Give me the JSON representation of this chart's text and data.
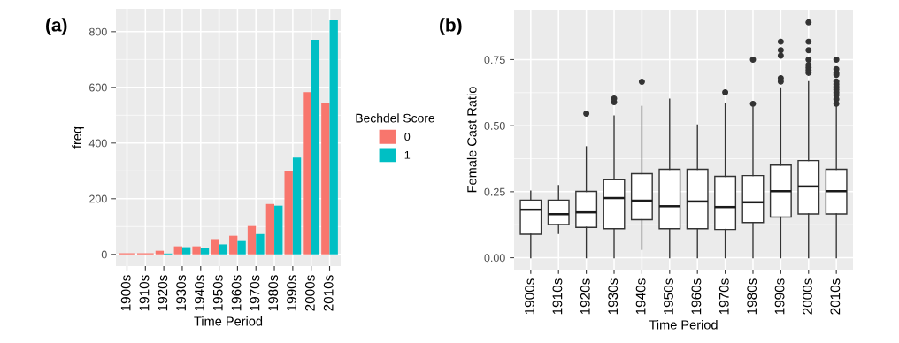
{
  "chart_data": [
    {
      "type": "bar",
      "title": "(a)",
      "xlabel": "Time Period",
      "ylabel": "freq",
      "legend_title": "Bechdel Score",
      "legend": "right",
      "categories": [
        "1900s",
        "1910s",
        "1920s",
        "1930s",
        "1940s",
        "1950s",
        "1960s",
        "1970s",
        "1980s",
        "1990s",
        "2000s",
        "2010s"
      ],
      "series": [
        {
          "name": "0",
          "color": "#f8766d",
          "values": [
            4,
            4,
            13,
            29,
            29,
            55,
            67,
            102,
            181,
            300,
            583,
            545
          ]
        },
        {
          "name": "1",
          "color": "#00bfc4",
          "values": [
            null,
            null,
            3,
            26,
            22,
            36,
            48,
            73,
            175,
            348,
            771,
            841
          ]
        }
      ],
      "ylim": [
        -42,
        882
      ],
      "yticks": [
        0,
        200,
        400,
        600,
        800
      ],
      "grid": true
    },
    {
      "type": "box",
      "title": "(b)",
      "xlabel": "Time Period",
      "ylabel": "Female Cast Ratio",
      "categories": [
        "1900s",
        "1910s",
        "1920s",
        "1930s",
        "1940s",
        "1950s",
        "1960s",
        "1970s",
        "1980s",
        "1990s",
        "2000s",
        "2010s"
      ],
      "boxes": [
        {
          "low": 0,
          "q1": 0.089,
          "median": 0.182,
          "q3": 0.218,
          "high": 0.252
        },
        {
          "low": 0.092,
          "q1": 0.126,
          "median": 0.165,
          "q3": 0.218,
          "high": 0.273
        },
        {
          "low": 0,
          "q1": 0.115,
          "median": 0.172,
          "q3": 0.251,
          "high": 0.42,
          "outliers": [
            0.546
          ]
        },
        {
          "low": 0,
          "q1": 0.11,
          "median": 0.226,
          "q3": 0.295,
          "high": 0.537,
          "outliers": [
            0.589,
            0.603
          ]
        },
        {
          "low": 0.032,
          "q1": 0.144,
          "median": 0.216,
          "q3": 0.318,
          "high": 0.573,
          "outliers": [
            0.666
          ]
        },
        {
          "low": 0,
          "q1": 0.11,
          "median": 0.195,
          "q3": 0.335,
          "high": 0.6
        },
        {
          "low": 0,
          "q1": 0.11,
          "median": 0.213,
          "q3": 0.335,
          "high": 0.502
        },
        {
          "low": 0,
          "q1": 0.107,
          "median": 0.192,
          "q3": 0.308,
          "high": 0.583,
          "outliers": [
            0.626
          ]
        },
        {
          "low": 0,
          "q1": 0.133,
          "median": 0.21,
          "q3": 0.311,
          "high": 0.571,
          "outliers": [
            0.583,
            0.75
          ]
        },
        {
          "low": 0,
          "q1": 0.154,
          "median": 0.252,
          "q3": 0.351,
          "high": 0.643,
          "outliers": [
            0.667,
            0.68,
            0.765,
            0.786,
            0.818
          ]
        },
        {
          "low": 0,
          "q1": 0.166,
          "median": 0.27,
          "q3": 0.368,
          "high": 0.666,
          "outliers": [
            0.7,
            0.71,
            0.72,
            0.73,
            0.75,
            0.786,
            0.818,
            0.891
          ]
        },
        {
          "low": 0,
          "q1": 0.166,
          "median": 0.252,
          "q3": 0.335,
          "high": 0.577,
          "outliers": [
            0.583,
            0.6,
            0.615,
            0.625,
            0.636,
            0.647,
            0.657,
            0.667,
            0.692,
            0.7,
            0.714,
            0.75
          ]
        }
      ],
      "ylim": [
        -0.045,
        0.939
      ],
      "yticks": [
        {
          "value": 0,
          "label": "0.00"
        },
        {
          "value": 0.25,
          "label": "0.25"
        },
        {
          "value": 0.5,
          "label": "0.50"
        },
        {
          "value": 0.75,
          "label": "0.75"
        }
      ],
      "grid": true
    }
  ]
}
